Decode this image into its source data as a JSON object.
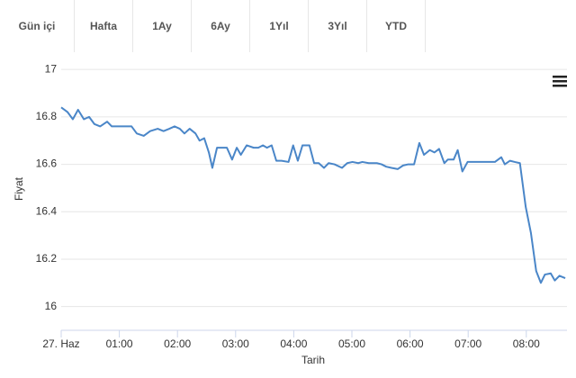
{
  "tabs": [
    "Gün içi",
    "Hafta",
    "1Ay",
    "6Ay",
    "1Yıl",
    "3Yıl",
    "YTD"
  ],
  "chart_data": {
    "type": "line",
    "xlabel": "Tarih",
    "ylabel": "Fiyat",
    "color": "#4a86c8",
    "grid": true,
    "x": [
      0,
      0.11,
      0.2,
      0.29,
      0.39,
      0.48,
      0.57,
      0.67,
      0.79,
      0.87,
      1.08,
      1.21,
      1.3,
      1.42,
      1.53,
      1.66,
      1.76,
      1.86,
      1.95,
      2.04,
      2.12,
      2.21,
      2.31,
      2.38,
      2.46,
      2.54,
      2.6,
      2.68,
      2.85,
      2.94,
      3.02,
      3.09,
      3.19,
      3.31,
      3.39,
      3.47,
      3.54,
      3.62,
      3.7,
      3.79,
      3.91,
      3.99,
      4.07,
      4.15,
      4.27,
      4.35,
      4.43,
      4.52,
      4.6,
      4.7,
      4.83,
      4.92,
      5.01,
      5.11,
      5.18,
      5.29,
      5.43,
      5.51,
      5.59,
      5.68,
      5.79,
      5.88,
      5.97,
      6.07,
      6.16,
      6.24,
      6.34,
      6.42,
      6.5,
      6.59,
      6.65,
      6.75,
      6.82,
      6.9,
      6.99,
      7.13,
      7.3,
      7.46,
      7.57,
      7.63,
      7.72,
      7.8,
      7.89,
      7.99,
      8.08,
      8.17,
      8.25,
      8.32,
      8.42,
      8.49,
      8.57,
      8.67
    ],
    "values": [
      16.84,
      16.82,
      16.79,
      16.83,
      16.79,
      16.8,
      16.77,
      16.76,
      16.78,
      16.76,
      16.76,
      16.76,
      16.73,
      16.72,
      16.74,
      16.75,
      16.74,
      16.75,
      16.76,
      16.75,
      16.73,
      16.75,
      16.73,
      16.7,
      16.71,
      16.65,
      16.585,
      16.67,
      16.67,
      16.62,
      16.67,
      16.64,
      16.68,
      16.67,
      16.67,
      16.68,
      16.67,
      16.68,
      16.615,
      16.615,
      16.61,
      16.68,
      16.615,
      16.68,
      16.68,
      16.605,
      16.605,
      16.585,
      16.605,
      16.6,
      16.585,
      16.605,
      16.61,
      16.605,
      16.61,
      16.605,
      16.605,
      16.6,
      16.59,
      16.585,
      16.58,
      16.595,
      16.6,
      16.6,
      16.69,
      16.64,
      16.66,
      16.65,
      16.665,
      16.605,
      16.62,
      16.62,
      16.66,
      16.57,
      16.61,
      16.61,
      16.61,
      16.61,
      16.63,
      16.6,
      16.615,
      16.61,
      16.605,
      16.42,
      16.31,
      16.15,
      16.1,
      16.135,
      16.14,
      16.11,
      16.13,
      16.12
    ],
    "xlim": [
      0,
      8.7
    ],
    "xticks": [
      {
        "value": 0,
        "label": "27. Haz"
      },
      {
        "value": 1,
        "label": "01:00"
      },
      {
        "value": 2,
        "label": "02:00"
      },
      {
        "value": 3,
        "label": "03:00"
      },
      {
        "value": 4,
        "label": "04:00"
      },
      {
        "value": 5,
        "label": "05:00"
      },
      {
        "value": 6,
        "label": "06:00"
      },
      {
        "value": 7,
        "label": "07:00"
      },
      {
        "value": 8,
        "label": "08:00"
      }
    ],
    "ylim": [
      15.9,
      17.05
    ],
    "yticks": [
      16,
      16.2,
      16.4,
      16.6,
      16.8,
      17
    ]
  }
}
